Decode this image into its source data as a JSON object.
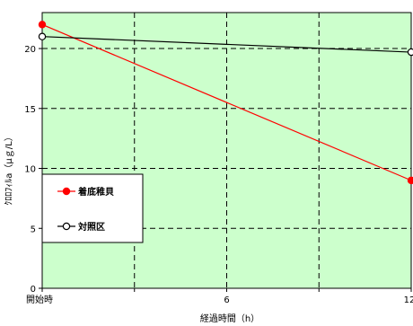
{
  "chart_data": {
    "type": "line",
    "title": "",
    "xlabel": "経過時間（h）",
    "ylabel": "ｸﾛﾛﾌｨﾙa（μｇ/L）",
    "x": [
      0,
      12
    ],
    "x_tick_values": [
      0,
      6,
      12
    ],
    "x_tick_labels": [
      "開始時",
      "6",
      "12"
    ],
    "xlim": [
      0,
      12
    ],
    "ylim": [
      0,
      23
    ],
    "y_ticks": [
      0,
      5,
      10,
      15,
      20
    ],
    "grid": true,
    "legend_position": "left",
    "plot_background": "#ccffcc",
    "series": [
      {
        "name": "着底稚貝",
        "values": [
          22,
          9
        ],
        "color": "#ff0000",
        "marker": "filled-circle"
      },
      {
        "name": "対照区",
        "values": [
          21,
          19.7
        ],
        "color": "#000000",
        "marker": "open-circle"
      }
    ]
  }
}
